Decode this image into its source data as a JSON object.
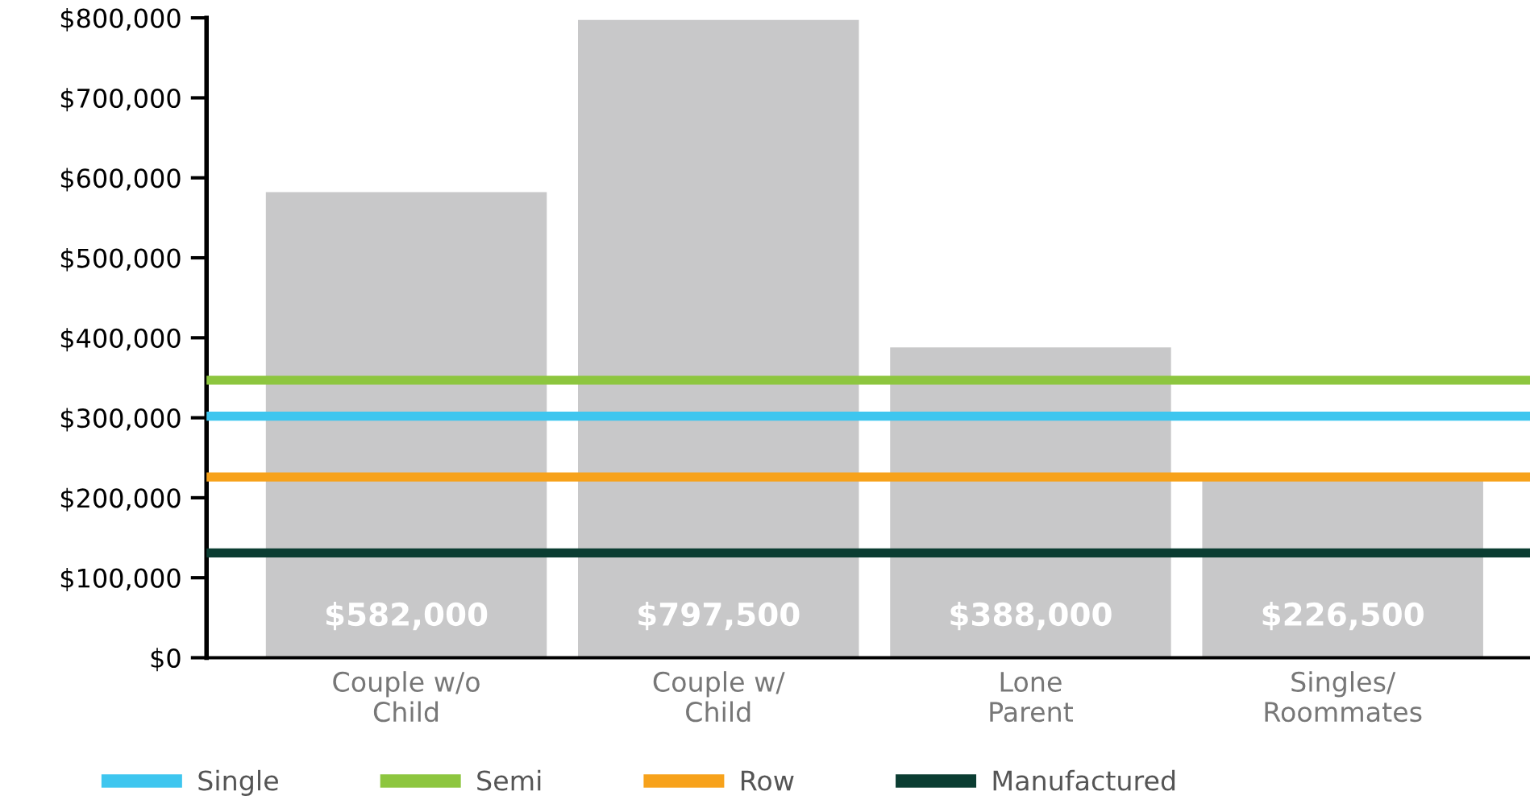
{
  "chart_data": {
    "type": "bar",
    "categories": [
      "Couple w/o\nChild",
      "Couple w/\nChild",
      "Lone\nParent",
      "Singles/\nRoommates"
    ],
    "values": [
      582000,
      797500,
      388000,
      226500
    ],
    "color": "#c8c8c9",
    "value_labels": [
      "$582,000",
      "$797,500",
      "$388,000",
      "$226,500"
    ],
    "ylim": [
      0,
      800000
    ],
    "yticks": [
      {
        "value": 0,
        "label": "$0"
      },
      {
        "value": 100000,
        "label": "$100,000"
      },
      {
        "value": 200000,
        "label": "$200,000"
      },
      {
        "value": 300000,
        "label": "$300,000"
      },
      {
        "value": 400000,
        "label": "$400,000"
      },
      {
        "value": 500000,
        "label": "$500,000"
      },
      {
        "value": 600000,
        "label": "$600,000"
      },
      {
        "value": 700000,
        "label": "$700,000"
      },
      {
        "value": 800000,
        "label": "$800,000"
      }
    ],
    "ref_lines": [
      {
        "axis": "y",
        "value": 302000,
        "label": "Single",
        "color": "#3ec6ef"
      },
      {
        "axis": "y",
        "value": 347000,
        "label": "Semi",
        "color": "#8dc63f"
      },
      {
        "axis": "y",
        "value": 226000,
        "label": "Row",
        "color": "#f7a21b"
      },
      {
        "axis": "y",
        "value": 131000,
        "label": "Manufactured",
        "color": "#0b3d32"
      }
    ],
    "grid": false,
    "legend": "bottom"
  }
}
